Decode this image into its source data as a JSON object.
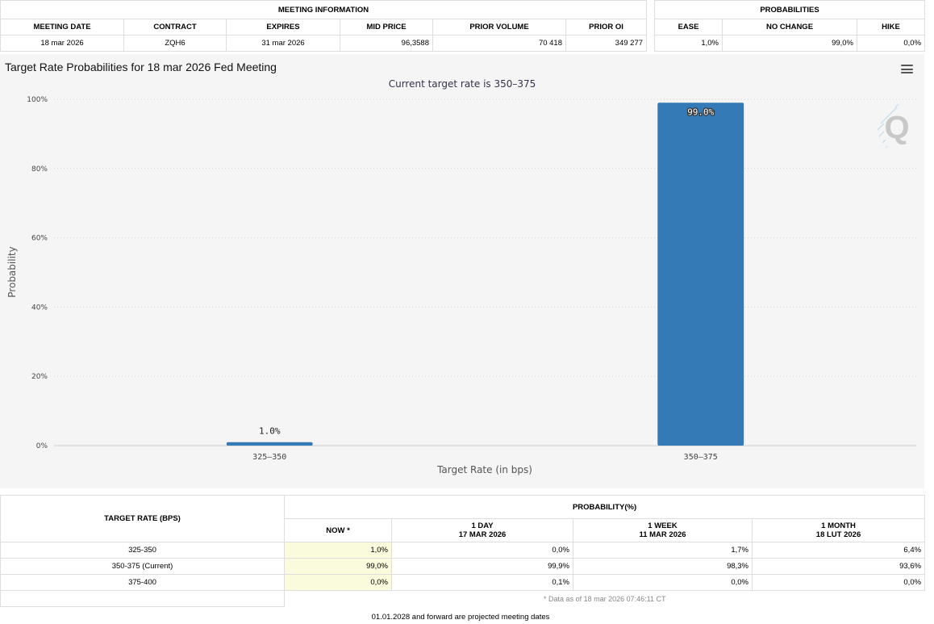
{
  "meeting_info": {
    "group_label": "MEETING INFORMATION",
    "headers": [
      "MEETING DATE",
      "CONTRACT",
      "EXPIRES",
      "MID PRICE",
      "PRIOR VOLUME",
      "PRIOR OI"
    ],
    "row": [
      "18 mar 2026",
      "ZQH6",
      "31 mar 2026",
      "96,3588",
      "70 418",
      "349 277"
    ]
  },
  "probabilities": {
    "group_label": "PROBABILITIES",
    "headers": [
      "EASE",
      "NO CHANGE",
      "HIKE"
    ],
    "row": [
      "1,0%",
      "99,0%",
      "0,0%"
    ]
  },
  "chart_data": {
    "type": "bar",
    "title": "Target Rate Probabilities for 18 mar 2026 Fed Meeting",
    "subtitle": "Current target rate is 350–375",
    "xlabel": "Target Rate (in bps)",
    "ylabel": "Probability",
    "categories": [
      "325–350",
      "350–375"
    ],
    "values": [
      1.0,
      99.0
    ],
    "data_labels": [
      "1.0%",
      "99.0%"
    ],
    "ylim": [
      0,
      100
    ],
    "yticks": [
      "0%",
      "20%",
      "40%",
      "60%",
      "80%",
      "100%"
    ],
    "bar_color": "#337ab7",
    "grid": true,
    "legend": "none"
  },
  "chart_ui": {
    "menu_icon": "hamburger-menu-icon",
    "logo_icon": "q-logo-icon",
    "logo_letter": "Q"
  },
  "rate_table": {
    "header_left": "TARGET RATE (BPS)",
    "header_group": "PROBABILITY(%)",
    "columns": [
      {
        "line1": "NOW *",
        "line2": ""
      },
      {
        "line1": "1 DAY",
        "line2": "17 MAR 2026"
      },
      {
        "line1": "1 WEEK",
        "line2": "11 MAR 2026"
      },
      {
        "line1": "1 MONTH",
        "line2": "18 LUT 2026"
      }
    ],
    "rows": [
      {
        "rate": "325-350",
        "values": [
          "1,0%",
          "0,0%",
          "1,7%",
          "6,4%"
        ]
      },
      {
        "rate": "350-375 (Current)",
        "values": [
          "99,0%",
          "99,9%",
          "98,3%",
          "93,6%"
        ]
      },
      {
        "rate": "375-400",
        "values": [
          "0,0%",
          "0,1%",
          "0,0%",
          "0,0%"
        ]
      }
    ],
    "note": "* Data as of 18 mar 2026 07:46:11 CT"
  },
  "footnote": "01.01.2028 and forward are projected meeting dates",
  "colors": {
    "now_column_bg": "#fafadc",
    "chart_bg": "#f5f5f5",
    "border": "#dedede"
  }
}
